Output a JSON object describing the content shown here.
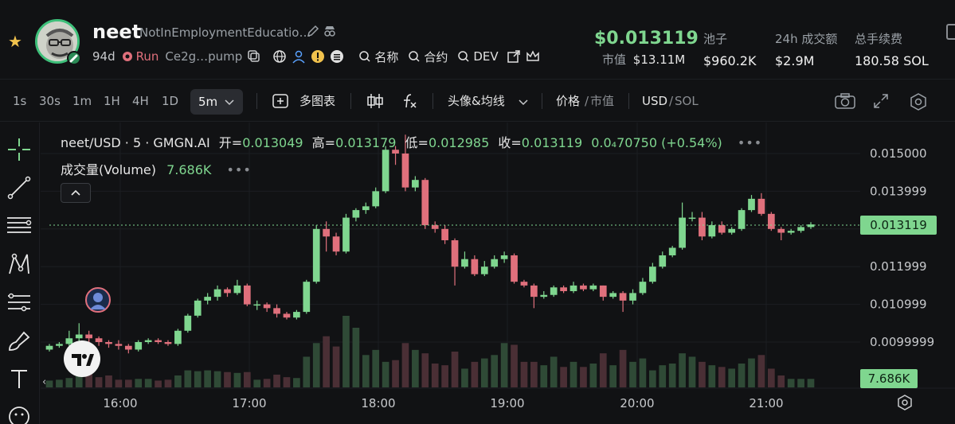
{
  "token": {
    "symbol": "neet",
    "full_name": "NotInEmploymentEducatio…",
    "age": "94d",
    "status": "Run",
    "address": "Ce2g…pump",
    "search_name": "名称",
    "search_contract": "合约",
    "search_dev": "DEV"
  },
  "market": {
    "price": "$0.013119",
    "mcap_label": "市值",
    "mcap_value": "$13.11M",
    "pool_label": "池子",
    "pool_value": "$960.2K",
    "volume_label": "24h 成交额",
    "volume_value": "$2.9M",
    "fee_label": "总手续费",
    "fee_value": "180.58 SOL"
  },
  "toolbar": {
    "timeframes": [
      "1s",
      "30s",
      "1m",
      "1H",
      "4H",
      "1D"
    ],
    "active_timeframe": "5m",
    "multi_chart": "多图表",
    "avatar_ma": "头像&均线",
    "price_label": "价格",
    "slash1": "/",
    "mcap_label": "市值",
    "usd": "USD",
    "slash2": "/",
    "sol": "SOL"
  },
  "legend": {
    "pair": "neet/USD · 5 · GMGN.AI",
    "open_label": "开=",
    "open": "0.013049",
    "high_label": "高=",
    "high": "0.013179",
    "low_label": "低=",
    "low": "0.012985",
    "close_label": "收=",
    "close": "0.013119",
    "change": "0.0₄70750 (+0.54%)",
    "volume_label": "成交量(Volume)",
    "volume_value": "7.686K"
  },
  "colors": {
    "up": "#7fd68f",
    "down": "#e0707c",
    "up_vol": "#2f4a36",
    "down_vol": "#4a2f35",
    "grid": "#1c1e22"
  },
  "chart_data": {
    "type": "candlestick",
    "x_ticks": [
      "16:00",
      "17:00",
      "18:00",
      "19:00",
      "20:00",
      "21:00"
    ],
    "y_ticks": [
      "0.015000",
      "0.013999",
      "0.012999",
      "0.011999",
      "0.010999",
      "0.0099999",
      "99"
    ],
    "current_price_label": "0.013119",
    "current_volume_label": "7.686K",
    "candles": [
      [
        0.0098,
        0.0099,
        0.00975,
        0.00995
      ],
      [
        0.0099,
        0.00995,
        0.00985,
        0.01
      ],
      [
        0.00995,
        0.0101,
        0.0099,
        0.0103
      ],
      [
        0.0101,
        0.0102,
        0.01,
        0.0105
      ],
      [
        0.0102,
        0.0101,
        0.01,
        0.0103
      ],
      [
        0.0101,
        0.01,
        0.0099,
        0.01015
      ],
      [
        0.01,
        0.00995,
        0.00985,
        0.01005
      ],
      [
        0.00995,
        0.0099,
        0.0098,
        0.01005
      ],
      [
        0.0099,
        0.0098,
        0.0097,
        0.00995
      ],
      [
        0.0098,
        0.01,
        0.00975,
        0.01005
      ],
      [
        0.01,
        0.01005,
        0.00995,
        0.0101
      ],
      [
        0.01005,
        0.01,
        0.00995,
        0.0101
      ],
      [
        0.01,
        0.00995,
        0.0099,
        0.01005
      ],
      [
        0.00995,
        0.0103,
        0.0099,
        0.01035
      ],
      [
        0.0103,
        0.0107,
        0.01025,
        0.01075
      ],
      [
        0.0107,
        0.0111,
        0.01065,
        0.01115
      ],
      [
        0.0111,
        0.0112,
        0.011,
        0.0113
      ],
      [
        0.0112,
        0.0114,
        0.0111,
        0.0115
      ],
      [
        0.0114,
        0.0113,
        0.0112,
        0.01145
      ],
      [
        0.0113,
        0.0115,
        0.01125,
        0.01165
      ],
      [
        0.0115,
        0.011,
        0.01095,
        0.01155
      ],
      [
        0.011,
        0.011,
        0.01085,
        0.0111
      ],
      [
        0.011,
        0.0109,
        0.0108,
        0.01105
      ],
      [
        0.0109,
        0.01075,
        0.01065,
        0.011
      ],
      [
        0.01075,
        0.01065,
        0.0106,
        0.0108
      ],
      [
        0.01065,
        0.0108,
        0.0106,
        0.01085
      ],
      [
        0.0108,
        0.0116,
        0.01075,
        0.01165
      ],
      [
        0.0116,
        0.013,
        0.01155,
        0.0131
      ],
      [
        0.013,
        0.0128,
        0.0124,
        0.0132
      ],
      [
        0.0128,
        0.0124,
        0.0123,
        0.0129
      ],
      [
        0.0124,
        0.0133,
        0.01235,
        0.0134
      ],
      [
        0.0133,
        0.0135,
        0.0132,
        0.01355
      ],
      [
        0.0135,
        0.0136,
        0.0134,
        0.0137
      ],
      [
        0.0136,
        0.014,
        0.01355,
        0.0141
      ],
      [
        0.014,
        0.0151,
        0.01395,
        0.0152
      ],
      [
        0.0151,
        0.015,
        0.0147,
        0.0152
      ],
      [
        0.015,
        0.0141,
        0.014,
        0.0155
      ],
      [
        0.0141,
        0.0143,
        0.014,
        0.0144
      ],
      [
        0.0143,
        0.0131,
        0.013,
        0.01435
      ],
      [
        0.0131,
        0.013,
        0.0129,
        0.0132
      ],
      [
        0.013,
        0.0127,
        0.0126,
        0.0131
      ],
      [
        0.0127,
        0.012,
        0.0115,
        0.01275
      ],
      [
        0.012,
        0.0122,
        0.01195,
        0.0124
      ],
      [
        0.0122,
        0.0118,
        0.01175,
        0.0123
      ],
      [
        0.0118,
        0.012,
        0.01175,
        0.01215
      ],
      [
        0.012,
        0.0122,
        0.01195,
        0.0123
      ],
      [
        0.0122,
        0.0123,
        0.0121,
        0.0124
      ],
      [
        0.0123,
        0.0116,
        0.01155,
        0.01235
      ],
      [
        0.0116,
        0.0115,
        0.01145,
        0.01165
      ],
      [
        0.0115,
        0.0112,
        0.0109,
        0.01155
      ],
      [
        0.0112,
        0.01125,
        0.01115,
        0.01135
      ],
      [
        0.01125,
        0.01145,
        0.0112,
        0.0115
      ],
      [
        0.01145,
        0.01135,
        0.0113,
        0.0115
      ],
      [
        0.01135,
        0.0115,
        0.0113,
        0.0116
      ],
      [
        0.0115,
        0.0114,
        0.01135,
        0.01155
      ],
      [
        0.0114,
        0.0115,
        0.01135,
        0.01155
      ],
      [
        0.0115,
        0.0112,
        0.0111,
        0.0115
      ],
      [
        0.0112,
        0.0113,
        0.01115,
        0.01135
      ],
      [
        0.0113,
        0.0111,
        0.0108,
        0.01135
      ],
      [
        0.0111,
        0.0113,
        0.011,
        0.0114
      ],
      [
        0.0113,
        0.0116,
        0.01125,
        0.0117
      ],
      [
        0.0116,
        0.012,
        0.01155,
        0.0121
      ],
      [
        0.012,
        0.0123,
        0.01195,
        0.0124
      ],
      [
        0.0123,
        0.0125,
        0.01225,
        0.01255
      ],
      [
        0.0125,
        0.0133,
        0.01245,
        0.0137
      ],
      [
        0.0133,
        0.0133,
        0.0132,
        0.01345
      ],
      [
        0.0133,
        0.0128,
        0.0127,
        0.01345
      ],
      [
        0.0128,
        0.0131,
        0.01275,
        0.0132
      ],
      [
        0.0131,
        0.0129,
        0.01285,
        0.0132
      ],
      [
        0.0129,
        0.013,
        0.01285,
        0.01305
      ],
      [
        0.013,
        0.0135,
        0.01295,
        0.01355
      ],
      [
        0.0135,
        0.0138,
        0.01345,
        0.0139
      ],
      [
        0.0138,
        0.0134,
        0.01335,
        0.01395
      ],
      [
        0.0134,
        0.013,
        0.01295,
        0.01345
      ],
      [
        0.013,
        0.0129,
        0.0127,
        0.01305
      ],
      [
        0.0129,
        0.01295,
        0.01285,
        0.013
      ],
      [
        0.01295,
        0.01305,
        0.0129,
        0.0131
      ],
      [
        0.01305,
        0.01312,
        0.013,
        0.01318
      ]
    ],
    "volumes": [
      8,
      9,
      11,
      16,
      20,
      12,
      14,
      9,
      9,
      10,
      10,
      8,
      9,
      14,
      20,
      19,
      20,
      19,
      18,
      17,
      18,
      9,
      10,
      15,
      12,
      11,
      36,
      52,
      60,
      48,
      84,
      70,
      38,
      44,
      30,
      32,
      52,
      44,
      40,
      28,
      26,
      42,
      22,
      30,
      34,
      38,
      52,
      50,
      30,
      30,
      26,
      36,
      24,
      30,
      24,
      28,
      40,
      26,
      44,
      30,
      34,
      20,
      26,
      28,
      40,
      36,
      30,
      26,
      24,
      22,
      28,
      34,
      38,
      22,
      14,
      10,
      10,
      10
    ]
  }
}
